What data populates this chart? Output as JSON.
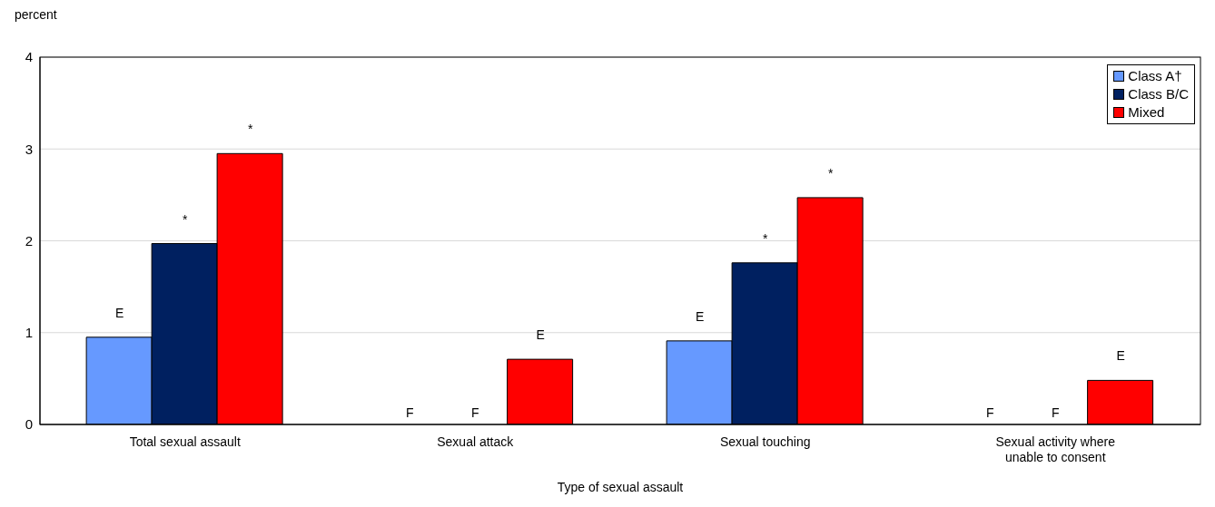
{
  "chart_data": {
    "type": "bar",
    "ylabel": "percent",
    "xlabel": "Type of sexual assault",
    "categories": [
      "Total sexual assault",
      "Sexual attack",
      "Sexual touching",
      "Sexual activity where unable to consent"
    ],
    "series": [
      {
        "name": "Class A†",
        "color": "#6699ff",
        "values": [
          0.95,
          null,
          0.91,
          null
        ],
        "value_labels": [
          "E",
          "F",
          "E",
          "F"
        ]
      },
      {
        "name": "Class B/C",
        "color": "#002060",
        "values": [
          1.97,
          null,
          1.76,
          null
        ],
        "value_labels": [
          "*",
          "F",
          "*",
          "F"
        ]
      },
      {
        "name": "Mixed",
        "color": "#ff0000",
        "values": [
          2.95,
          0.71,
          2.47,
          0.48
        ],
        "value_labels": [
          "*",
          "E",
          "*",
          "E"
        ]
      }
    ],
    "ylim": [
      0,
      4
    ],
    "yticks": [
      0,
      1,
      2,
      3,
      4
    ],
    "grid": "y",
    "legend": "top right"
  }
}
